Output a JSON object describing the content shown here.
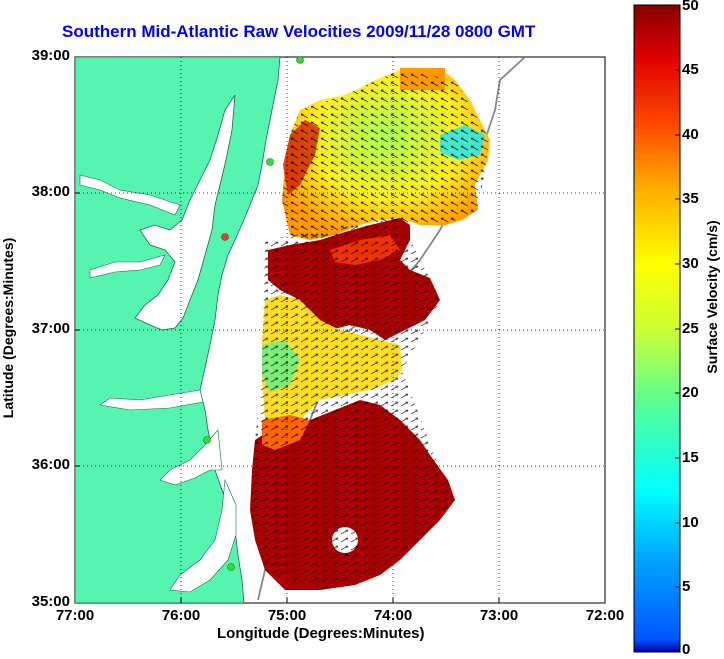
{
  "title": "Southern Mid-Atlantic Raw Velocities 2009/11/28 0800 GMT",
  "map": {
    "xlabel": "Longitude (Degrees:Minutes)",
    "ylabel": "Latitude (Degrees:Minutes)",
    "lon_ticks": [
      "77:00",
      "76:00",
      "75:00",
      "74:00",
      "73:00",
      "72:00"
    ],
    "lat_ticks": [
      "39:00",
      "38:00",
      "37:00",
      "36:00",
      "35:00"
    ],
    "lon_range": [
      -77,
      -72
    ],
    "lat_range": [
      35,
      39
    ],
    "land_color": "#55f5b0",
    "grid": true
  },
  "colorbar": {
    "label": "Surface Velocity (cm/s)",
    "ticks": [
      "50",
      "45",
      "40",
      "35",
      "30",
      "25",
      "20",
      "15",
      "10",
      "5",
      "0"
    ],
    "range": [
      0,
      50
    ],
    "colormap": "jet"
  },
  "stations": [
    {
      "color": "#33dd33"
    },
    {
      "color": "#33dd33"
    },
    {
      "color": "#ff3333"
    },
    {
      "color": "#33dd33"
    },
    {
      "color": "#33dd33"
    }
  ]
}
